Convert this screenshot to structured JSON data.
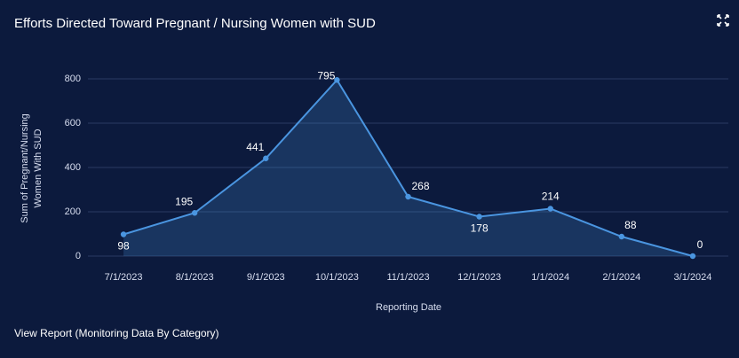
{
  "chart_data": {
    "type": "line",
    "title": "Efforts Directed Toward Pregnant / Nursing Women with SUD",
    "categories": [
      "7/1/2023",
      "8/1/2023",
      "9/1/2023",
      "10/1/2023",
      "11/1/2023",
      "12/1/2023",
      "1/1/2024",
      "2/1/2024",
      "3/1/2024"
    ],
    "values": [
      98,
      195,
      441,
      795,
      268,
      178,
      214,
      88,
      0
    ],
    "color": "#4a95e0",
    "ylim": [
      0,
      800
    ],
    "yticks": [
      0,
      200,
      400,
      600,
      800
    ],
    "grid": true,
    "x_label": "Reporting Date",
    "y_label": [
      "Sum of Pregnant/Nursing",
      "Women With SUD"
    ]
  },
  "footer_link": "View Report (Monitoring Data By Category)"
}
